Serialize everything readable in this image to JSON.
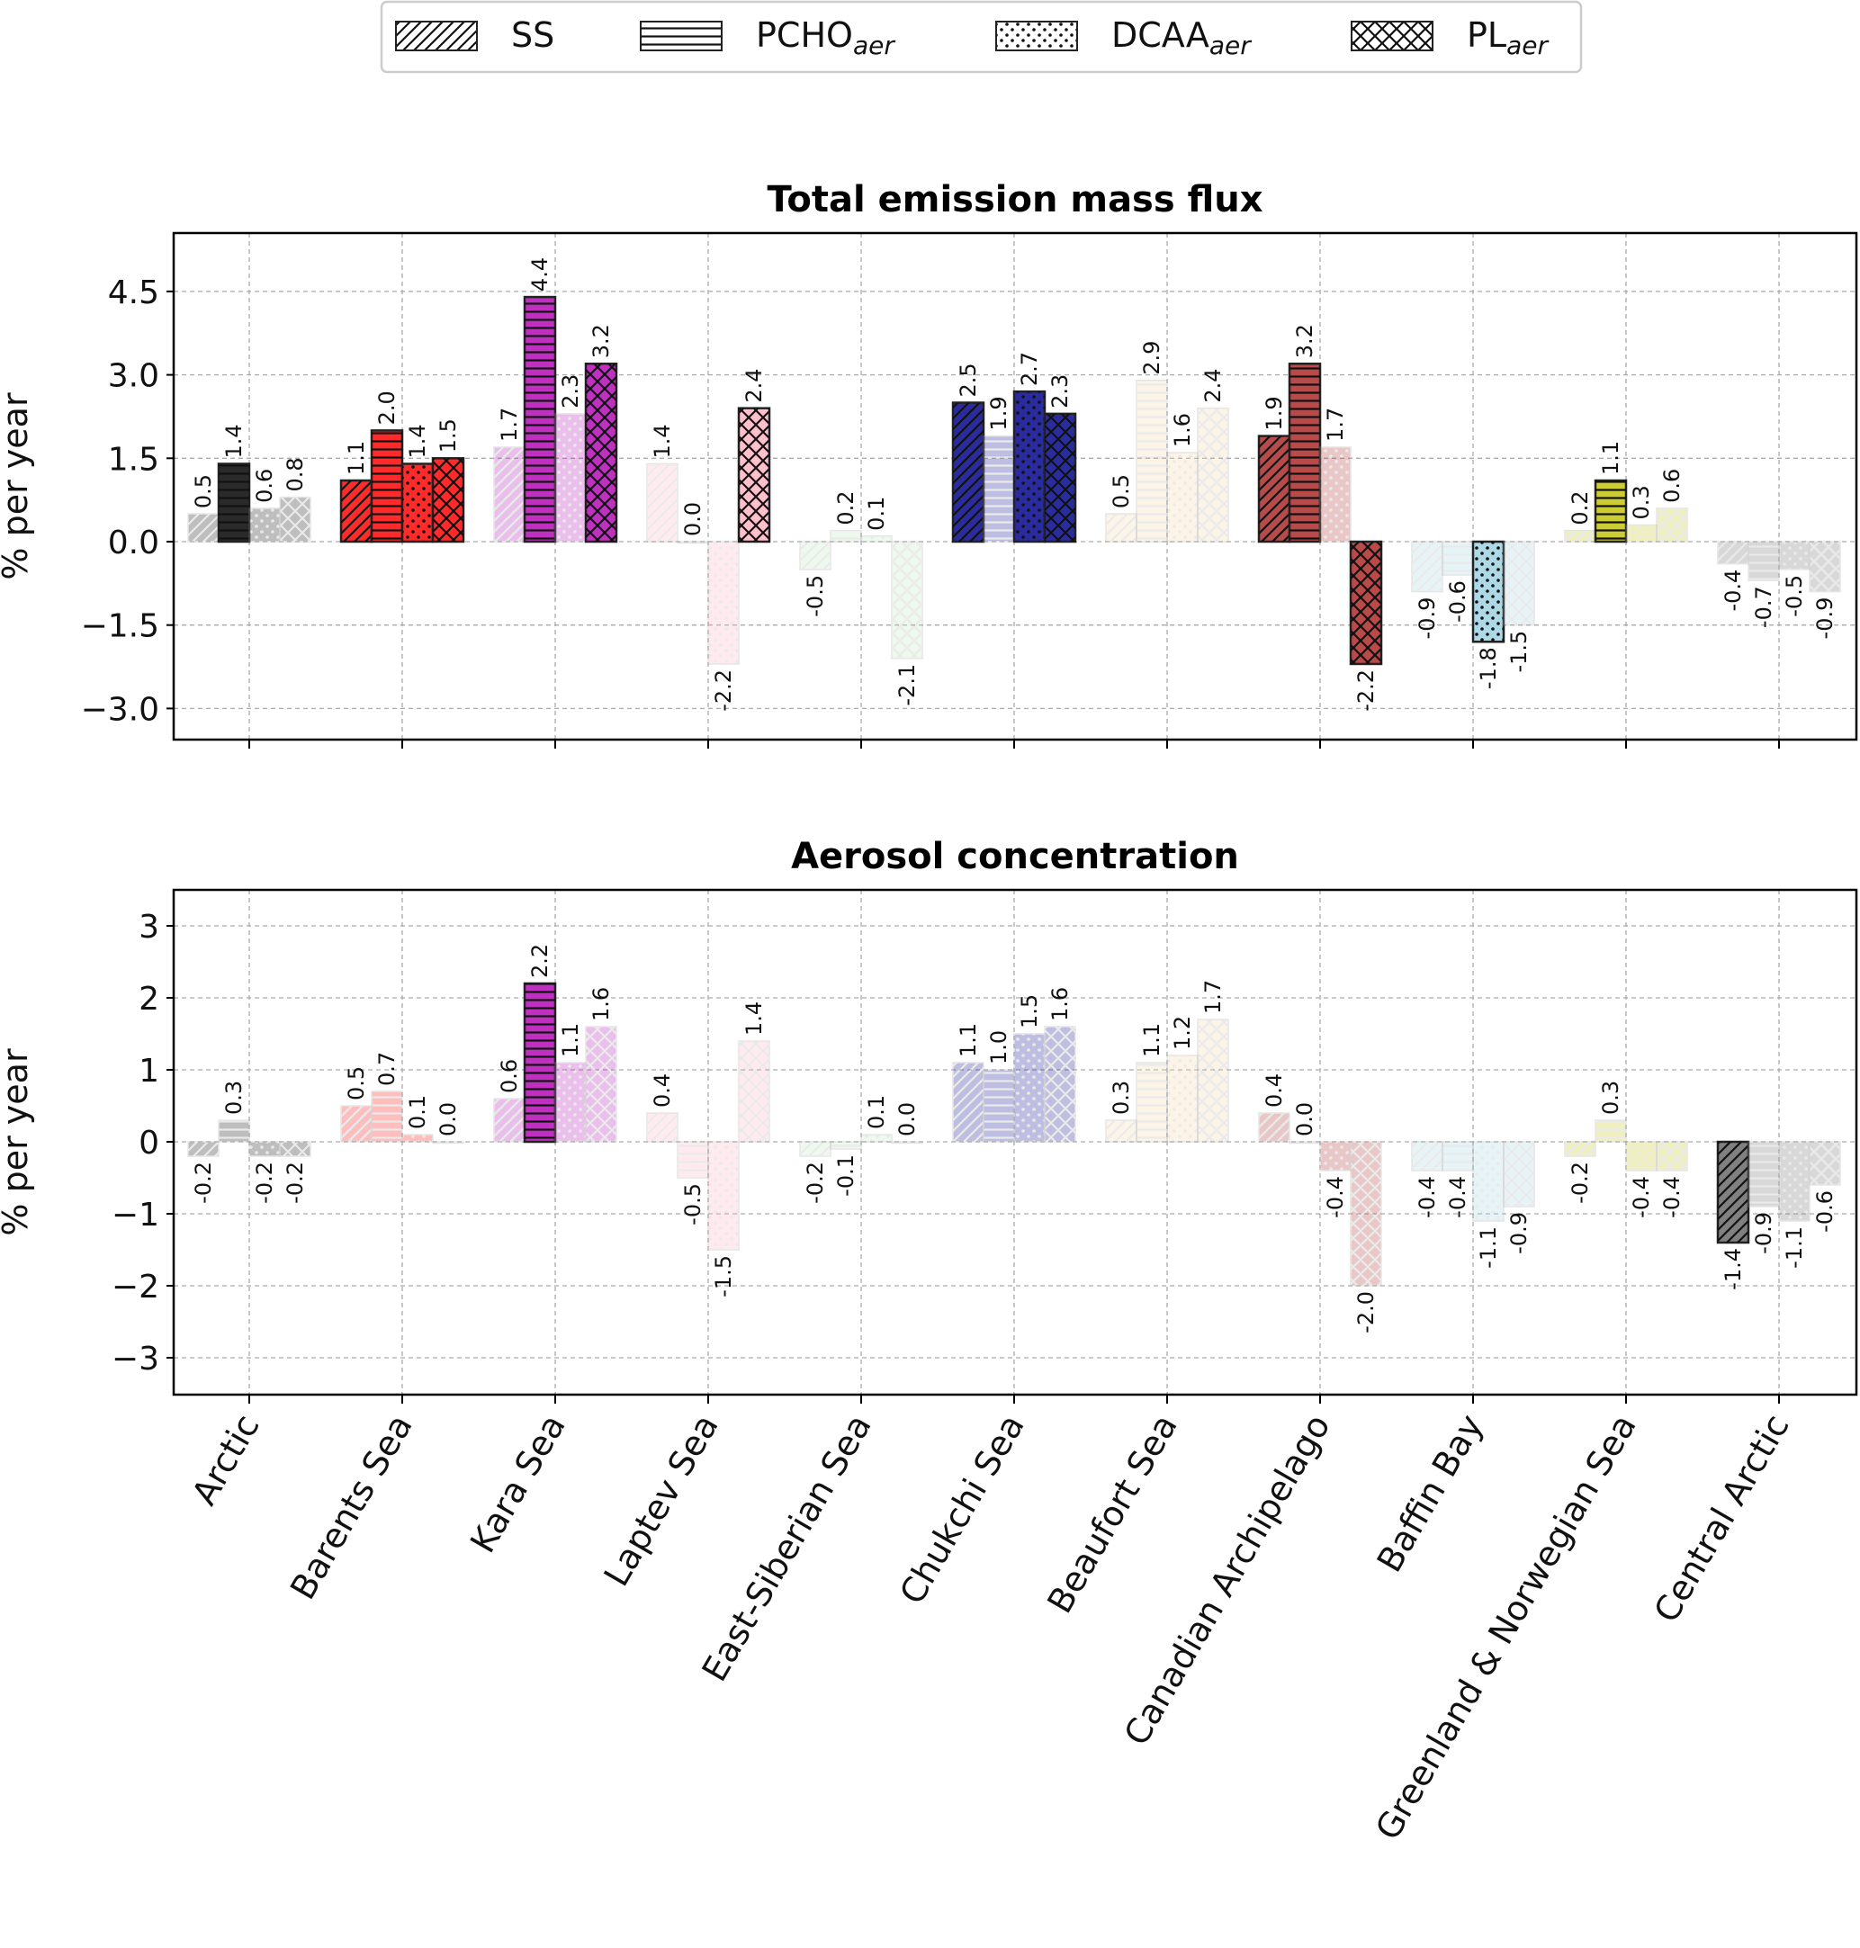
{
  "chart_data": [
    {
      "type": "bar",
      "title": "Total emission mass flux",
      "ylabel": "% per year",
      "ylim": [
        -3.5,
        5.5
      ],
      "yticks": [
        "4.5",
        "3.0",
        "1.5",
        "0.0",
        "−1.5",
        "−3.0"
      ],
      "ytick_values": [
        4.5,
        3.0,
        1.5,
        0,
        -1.5,
        -3.0
      ],
      "grid": true,
      "categories": [
        "Arctic",
        "Barents Sea",
        "Kara Sea",
        "Laptev Sea",
        "East-Siberian Sea",
        "Chukchi Sea",
        "Beaufort Sea",
        "Canadian Archipelago",
        "Baffin Bay",
        "Greenland & Norwegian Sea",
        "Central Arctic"
      ],
      "series": [
        {
          "name": "SS",
          "values": [
            0.5,
            1.1,
            1.7,
            1.4,
            -0.5,
            2.5,
            0.5,
            1.9,
            -0.9,
            0.2,
            -0.4
          ],
          "significant": [
            false,
            true,
            false,
            false,
            false,
            true,
            false,
            true,
            false,
            false,
            false
          ]
        },
        {
          "name": "PCHO",
          "values": [
            1.4,
            2.0,
            4.4,
            0.0,
            0.2,
            1.9,
            2.9,
            3.2,
            -0.6,
            1.1,
            -0.7
          ],
          "significant": [
            true,
            true,
            true,
            false,
            false,
            false,
            false,
            true,
            false,
            true,
            false
          ]
        },
        {
          "name": "DCAA",
          "values": [
            0.6,
            1.4,
            2.3,
            -2.2,
            0.1,
            2.7,
            1.6,
            1.7,
            -1.8,
            0.3,
            -0.5
          ],
          "significant": [
            false,
            true,
            false,
            false,
            false,
            true,
            false,
            false,
            true,
            false,
            false
          ]
        },
        {
          "name": "PL",
          "values": [
            0.8,
            1.5,
            3.2,
            2.4,
            -2.1,
            2.3,
            2.4,
            -2.2,
            -1.5,
            0.6,
            -0.9
          ],
          "significant": [
            false,
            true,
            true,
            true,
            false,
            true,
            false,
            true,
            false,
            false,
            false
          ]
        }
      ]
    },
    {
      "type": "bar",
      "title": "Aerosol concentration",
      "ylabel": "% per year",
      "ylim": [
        -3.5,
        3.5
      ],
      "yticks": [
        "3",
        "2",
        "1",
        "0",
        "−1",
        "−2",
        "−3"
      ],
      "ytick_values": [
        3,
        2,
        1,
        0,
        -1,
        -2,
        -3
      ],
      "grid": true,
      "categories": [
        "Arctic",
        "Barents Sea",
        "Kara Sea",
        "Laptev Sea",
        "East-Siberian Sea",
        "Chukchi Sea",
        "Beaufort Sea",
        "Canadian Archipelago",
        "Baffin Bay",
        "Greenland & Norwegian Sea",
        "Central Arctic"
      ],
      "series": [
        {
          "name": "SS",
          "values": [
            -0.2,
            0.5,
            0.6,
            0.4,
            -0.2,
            1.1,
            0.3,
            0.4,
            -0.4,
            -0.2,
            -1.4
          ],
          "significant": [
            false,
            false,
            false,
            false,
            false,
            false,
            false,
            false,
            false,
            false,
            true
          ]
        },
        {
          "name": "PCHO",
          "values": [
            0.3,
            0.7,
            2.2,
            -0.5,
            -0.1,
            1.0,
            1.1,
            0.0,
            -0.4,
            0.3,
            -0.9
          ],
          "significant": [
            false,
            false,
            true,
            false,
            false,
            false,
            false,
            false,
            false,
            false,
            false
          ]
        },
        {
          "name": "DCAA",
          "values": [
            -0.2,
            0.1,
            1.1,
            -1.5,
            0.1,
            1.5,
            1.2,
            -0.4,
            -1.1,
            -0.4,
            -1.1
          ],
          "significant": [
            false,
            false,
            false,
            false,
            false,
            false,
            false,
            false,
            false,
            false,
            false
          ]
        },
        {
          "name": "PL",
          "values": [
            -0.2,
            0.0,
            1.6,
            1.4,
            0.0,
            1.6,
            1.7,
            -2.0,
            -0.9,
            -0.4,
            -0.6
          ],
          "significant": [
            false,
            false,
            false,
            false,
            false,
            false,
            false,
            false,
            false,
            false,
            false
          ]
        }
      ]
    }
  ],
  "legend": [
    {
      "name": "SS",
      "sub": ""
    },
    {
      "name": "PCHO",
      "sub": "aer"
    },
    {
      "name": "DCAA",
      "sub": "aer"
    },
    {
      "name": "PL",
      "sub": "aer"
    }
  ],
  "legend_placement": "top-center",
  "region_colors": [
    "#2a2a2a",
    "#ff2a2a",
    "#c030c0",
    "#ffc0cb",
    "#c8ecc8",
    "#2b2ba0",
    "#f5deb3",
    "#b84a4a",
    "#add8e6",
    "#cccc33",
    "#808080"
  ]
}
